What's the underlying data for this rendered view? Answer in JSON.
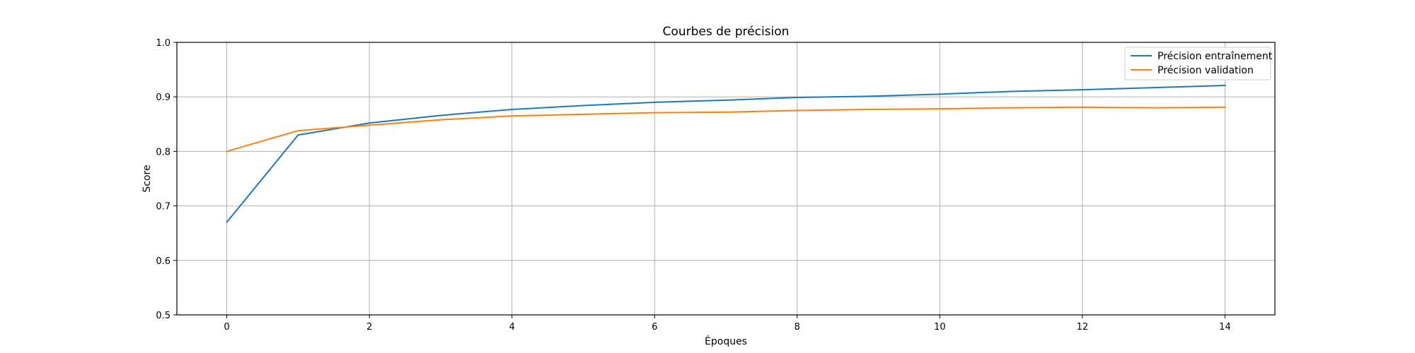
{
  "chart_data": {
    "type": "line",
    "title": "Courbes de précision",
    "xlabel": "Époques",
    "ylabel": "Score",
    "x": [
      0,
      1,
      2,
      3,
      4,
      5,
      6,
      7,
      8,
      9,
      10,
      11,
      12,
      13,
      14
    ],
    "xlim": [
      -0.7,
      14.7
    ],
    "ylim": [
      0.5,
      1.0
    ],
    "xticks": [
      0,
      2,
      4,
      6,
      8,
      10,
      12,
      14
    ],
    "yticks": [
      0.5,
      0.6,
      0.7,
      0.8,
      0.9,
      1.0
    ],
    "xtick_labels": [
      "0",
      "2",
      "4",
      "6",
      "8",
      "10",
      "12",
      "14"
    ],
    "ytick_labels": [
      "0.5",
      "0.6",
      "0.7",
      "0.8",
      "0.9",
      "1.0"
    ],
    "grid": true,
    "legend_position": "top-right",
    "series": [
      {
        "name": "Précision entraînement",
        "color": "#1f77b4",
        "values": [
          0.67,
          0.83,
          0.852,
          0.866,
          0.877,
          0.884,
          0.89,
          0.894,
          0.899,
          0.901,
          0.905,
          0.91,
          0.913,
          0.917,
          0.921
        ]
      },
      {
        "name": "Précision validation",
        "color": "#ff7f0e",
        "values": [
          0.8,
          0.838,
          0.848,
          0.858,
          0.865,
          0.868,
          0.871,
          0.872,
          0.875,
          0.877,
          0.878,
          0.88,
          0.881,
          0.88,
          0.881
        ]
      }
    ]
  }
}
